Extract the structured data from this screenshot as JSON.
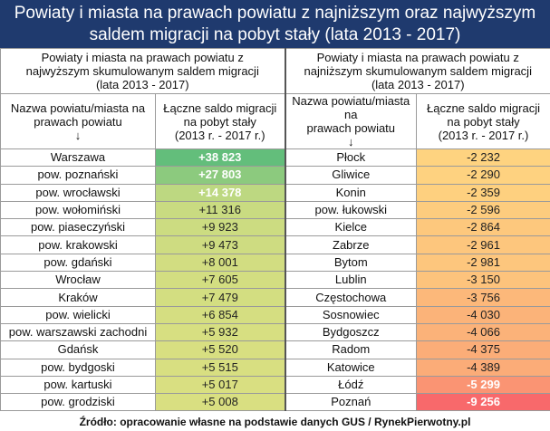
{
  "title_line1": "Powiaty i miasta na prawach powiatu z najniższym oraz najwyższym",
  "title_line2": "saldem migracji na pobyt stały (lata 2013 - 2017)",
  "left": {
    "section_line1": "Powiaty i miasta na prawach powiatu z",
    "section_line2": "najwyższym skumulowanym saldem migracji",
    "section_line3": "(lata 2013 - 2017)",
    "col_name_line1": "Nazwa powiatu/miasta na",
    "col_name_line2": "prawach powiatu",
    "col_name_arrow": "↓",
    "col_value_line1": "Łączne saldo migracji",
    "col_value_line2": "na pobyt stały",
    "col_value_line3": "(2013 r. - 2017 r.)",
    "rows": [
      {
        "name": "Warszawa",
        "value": "+38 823",
        "color": "#63be7b",
        "text_color": "#ffffff"
      },
      {
        "name": "pow. poznański",
        "value": "+27 803",
        "color": "#8cca7e",
        "text_color": "#ffffff"
      },
      {
        "name": "pow. wrocławski",
        "value": "+14 378",
        "color": "#bdd881",
        "text_color": "#ffffff"
      },
      {
        "name": "pow. wołomiński",
        "value": "+11 316",
        "color": "#c9db81",
        "text_color": "#222222"
      },
      {
        "name": "pow. piaseczyński",
        "value": "+9 923",
        "color": "#ccdc81",
        "text_color": "#222222"
      },
      {
        "name": "pow. krakowski",
        "value": "+9 473",
        "color": "#cedc81",
        "text_color": "#222222"
      },
      {
        "name": "pow. gdański",
        "value": "+8 001",
        "color": "#d2dd81",
        "text_color": "#222222"
      },
      {
        "name": "Wrocław",
        "value": "+7 605",
        "color": "#d3de81",
        "text_color": "#222222"
      },
      {
        "name": "Kraków",
        "value": "+7 479",
        "color": "#d3de81",
        "text_color": "#222222"
      },
      {
        "name": "pow. wielicki",
        "value": "+6 854",
        "color": "#d5de81",
        "text_color": "#222222"
      },
      {
        "name": "pow. warszawski zachodni",
        "value": "+5 932",
        "color": "#d7df81",
        "text_color": "#222222"
      },
      {
        "name": "Gdańsk",
        "value": "+5 520",
        "color": "#d8df81",
        "text_color": "#222222"
      },
      {
        "name": "pow. bydgoski",
        "value": "+5 515",
        "color": "#d8df81",
        "text_color": "#222222"
      },
      {
        "name": "pow. kartuski",
        "value": "+5 017",
        "color": "#d9df81",
        "text_color": "#222222"
      },
      {
        "name": "pow. grodziski",
        "value": "+5 008",
        "color": "#d9df81",
        "text_color": "#222222"
      }
    ]
  },
  "right": {
    "section_line1": "Powiaty i miasta na prawach powiatu z",
    "section_line2": "najniższym skumulowanym saldem migracji",
    "section_line3": "(lata 2013 - 2017)",
    "col_name_line1": "Nazwa powiatu/miasta na",
    "col_name_line2": "prawach powiatu",
    "col_name_arrow": "↓",
    "col_value_line1": "Łączne saldo migracji",
    "col_value_line2": "na pobyt stały",
    "col_value_line3": "(2013 r. - 2017 r.)",
    "rows": [
      {
        "name": "Płock",
        "value": "-2 232",
        "color": "#fed380",
        "text_color": "#222222"
      },
      {
        "name": "Gliwice",
        "value": "-2 290",
        "color": "#fed280",
        "text_color": "#222222"
      },
      {
        "name": "Konin",
        "value": "-2 359",
        "color": "#fed07f",
        "text_color": "#222222"
      },
      {
        "name": "pow. łukowski",
        "value": "-2 596",
        "color": "#fdcc7e",
        "text_color": "#222222"
      },
      {
        "name": "Kielce",
        "value": "-2 864",
        "color": "#fdc87d",
        "text_color": "#222222"
      },
      {
        "name": "Zabrze",
        "value": "-2 961",
        "color": "#fdc67d",
        "text_color": "#222222"
      },
      {
        "name": "Bytom",
        "value": "-2 981",
        "color": "#fdc67d",
        "text_color": "#222222"
      },
      {
        "name": "Lublin",
        "value": "-3 150",
        "color": "#fdc37c",
        "text_color": "#222222"
      },
      {
        "name": "Częstochowa",
        "value": "-3 756",
        "color": "#fcb87a",
        "text_color": "#222222"
      },
      {
        "name": "Sosnowiec",
        "value": "-4 030",
        "color": "#fbb379",
        "text_color": "#222222"
      },
      {
        "name": "Bydgoszcz",
        "value": "-4 066",
        "color": "#fbb279",
        "text_color": "#222222"
      },
      {
        "name": "Radom",
        "value": "-4 375",
        "color": "#fbad78",
        "text_color": "#222222"
      },
      {
        "name": "Katowice",
        "value": "-4 389",
        "color": "#fbac78",
        "text_color": "#222222"
      },
      {
        "name": "Łódź",
        "value": "-5 299",
        "color": "#fa9473",
        "text_color": "#ffffff"
      },
      {
        "name": "Poznań",
        "value": "-9 256",
        "color": "#f8696b",
        "text_color": "#ffffff"
      }
    ]
  },
  "source": "Źródło: opracowanie własne na podstawie danych GUS / RynekPierwotny.pl"
}
